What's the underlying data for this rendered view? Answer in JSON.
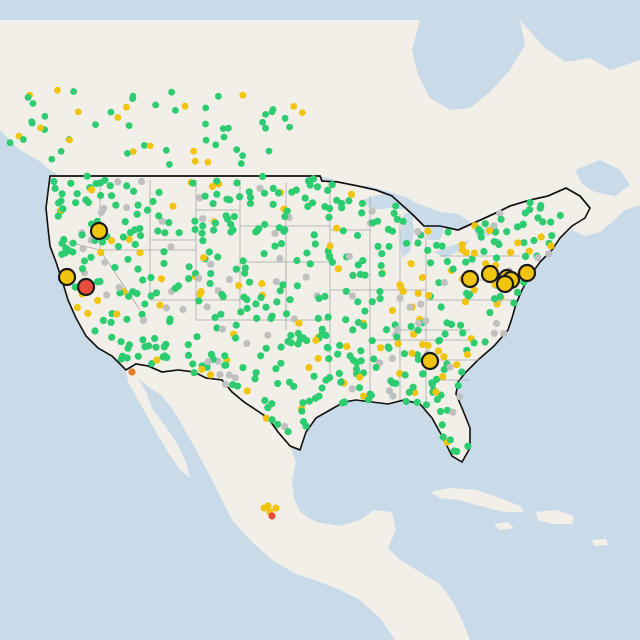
{
  "map": {
    "colors": {
      "water": "#c9dbe9",
      "land": "#f2efe9",
      "land_alt": "#eeebe4",
      "us_border": "#111111",
      "state_border": "#a9a9a9",
      "good": "#2ecc71",
      "moderate": "#f1c40f",
      "sensitive": "#e67e22",
      "unhealthy": "#e74c3c",
      "no_data": "#c0c0c0",
      "marker_stroke": "#1a1a1a"
    },
    "marker_legend": {
      "good": "green-dot",
      "moderate": "yellow-dot",
      "sensitive": "orange-dot",
      "unhealthy": "red-dot",
      "no_data": "gray-dot"
    }
  }
}
